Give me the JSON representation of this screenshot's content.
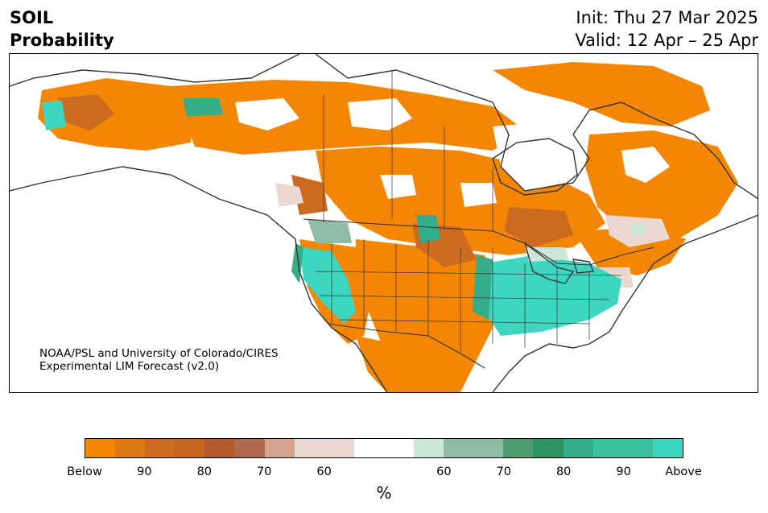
{
  "header": {
    "variable": "SOIL",
    "quantity": "Probability",
    "init": "Init: Thu 27 Mar 2025",
    "valid": "Valid: 12 Apr – 25 Apr"
  },
  "credit": {
    "line1": "NOAA/PSL and University of Colorado/CIRES",
    "line2": "Experimental LIM Forecast (v2.0)"
  },
  "colorbar": {
    "colors": [
      "#f38705",
      "#e07a12",
      "#cc6a1f",
      "#c8661f",
      "#b25a2c",
      "#b06a50",
      "#d4a48f",
      "#ead8d0",
      "#ead8d0",
      "#ffffff",
      "#ffffff",
      "#cde6da",
      "#8fbca6",
      "#8fbca6",
      "#4e9c6e",
      "#2e9464",
      "#35ac8a",
      "#3bc0a0",
      "#3bc0a0",
      "#3dd6c0"
    ],
    "ticks": [
      "Below",
      "90",
      "80",
      "70",
      "60",
      "60",
      "70",
      "80",
      "90",
      "Above"
    ],
    "unit": "%"
  },
  "map_colors": {
    "below": "#f38705",
    "below_strong": "#cc6a1f",
    "below_weak": "#ead8d0",
    "above": "#3dd6c0",
    "above_mid": "#35ac8a",
    "above_weak": "#cde6da",
    "lines": "#333333"
  }
}
